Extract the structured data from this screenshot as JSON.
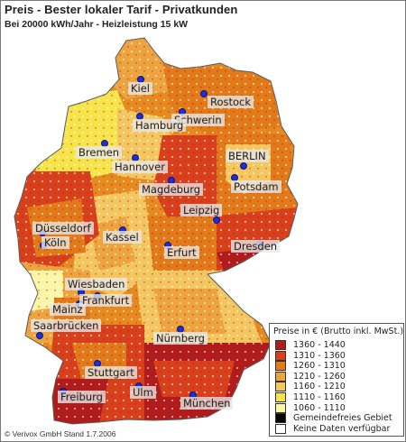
{
  "title": "Preis - Bester lokaler Tarif - Privatkunden",
  "subtitle": "Bei 20000 kWh/Jahr - Heizleistung 15 kW",
  "copyright": "© Verivox GmbH Stand 1.7.2006",
  "legend": {
    "title": "Preise in € (Brutto inkl. MwSt.)",
    "items": [
      {
        "label": "1360 - 1440",
        "color": "#b01c1c"
      },
      {
        "label": "1310 - 1360",
        "color": "#d8401c"
      },
      {
        "label": "1260 - 1310",
        "color": "#e27a1a"
      },
      {
        "label": "1210 - 1260",
        "color": "#eea43e"
      },
      {
        "label": "1160 - 1210",
        "color": "#f3c660"
      },
      {
        "label": "1110 - 1160",
        "color": "#f7e44a"
      },
      {
        "label": "1060 - 1110",
        "color": "#fbf6a6"
      },
      {
        "label": "Gemeindefreies Gebiet",
        "color": "#000000"
      },
      {
        "label": "Keine Daten verfügbar",
        "color": "#ffffff"
      }
    ]
  },
  "cities": [
    {
      "name": "Kiel"
    },
    {
      "name": "Rostock"
    },
    {
      "name": "Schwerin"
    },
    {
      "name": "Hamburg"
    },
    {
      "name": "Bremen"
    },
    {
      "name": "Hannover"
    },
    {
      "name": "BERLIN"
    },
    {
      "name": "Potsdam"
    },
    {
      "name": "Magdeburg"
    },
    {
      "name": "Leipzig"
    },
    {
      "name": "Düsseldorf"
    },
    {
      "name": "Köln"
    },
    {
      "name": "Kassel"
    },
    {
      "name": "Erfurt"
    },
    {
      "name": "Dresden"
    },
    {
      "name": "Wiesbaden"
    },
    {
      "name": "Mainz"
    },
    {
      "name": "Frankfurt"
    },
    {
      "name": "Saarbrücken"
    },
    {
      "name": "Nürnberg"
    },
    {
      "name": "Stuttgart"
    },
    {
      "name": "Ulm"
    },
    {
      "name": "Freiburg"
    },
    {
      "name": "München"
    }
  ]
}
